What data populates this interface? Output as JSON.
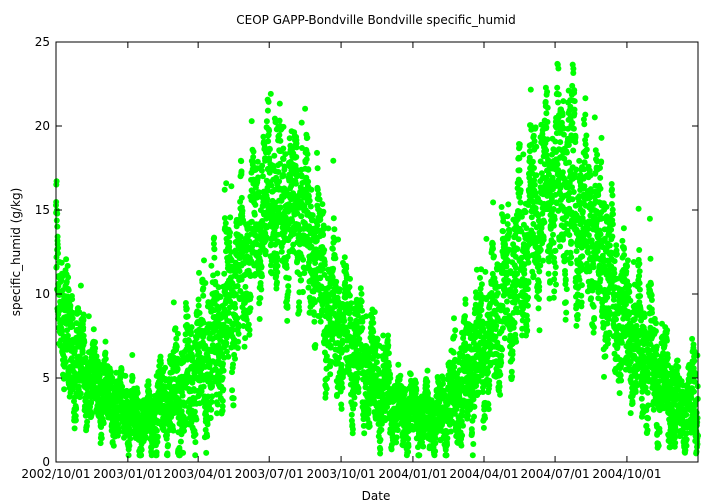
{
  "chart_data": {
    "type": "scatter",
    "title": "CEOP GAPP-Bondville Bondville  specific_humid",
    "xlabel": "Date",
    "ylabel": "specific_humid (g/kg)",
    "x_range": [
      "2002-10-01",
      "2004-12-31"
    ],
    "ylim": [
      0,
      25
    ],
    "grid": false,
    "legend": "none",
    "x_ticks": [
      {
        "date": "2002-10-01",
        "label": "2002/10/01"
      },
      {
        "date": "2003-01-01",
        "label": "2003/01/01"
      },
      {
        "date": "2003-04-01",
        "label": "2003/04/01"
      },
      {
        "date": "2003-07-01",
        "label": "2003/07/01"
      },
      {
        "date": "2003-10-01",
        "label": "2003/10/01"
      },
      {
        "date": "2004-01-01",
        "label": "2004/01/01"
      },
      {
        "date": "2004-04-01",
        "label": "2004/04/01"
      },
      {
        "date": "2004-07-01",
        "label": "2004/07/01"
      },
      {
        "date": "2004-10-01",
        "label": "2004/10/01"
      }
    ],
    "y_ticks": [
      0,
      5,
      10,
      15,
      20,
      25
    ],
    "point_color": "#00ff00",
    "series": [
      {
        "x": [
          "2002-10-01",
          "2002-10-15",
          "2002-11-01",
          "2002-11-15",
          "2002-12-01",
          "2002-12-15",
          "2003-01-01",
          "2003-01-15",
          "2003-02-01",
          "2003-02-15",
          "2003-03-01",
          "2003-03-15",
          "2003-04-01",
          "2003-04-15",
          "2003-05-01",
          "2003-05-15",
          "2003-06-01",
          "2003-06-15",
          "2003-07-01",
          "2003-07-15",
          "2003-08-01",
          "2003-08-15",
          "2003-09-01",
          "2003-09-15",
          "2003-10-01",
          "2003-10-15",
          "2003-11-01",
          "2003-11-15",
          "2003-12-01",
          "2003-12-15",
          "2004-01-01",
          "2004-01-15",
          "2004-02-01",
          "2004-02-15",
          "2004-03-01",
          "2004-03-15",
          "2004-04-01",
          "2004-04-15",
          "2004-05-01",
          "2004-05-15",
          "2004-06-01",
          "2004-06-15",
          "2004-07-01",
          "2004-07-15",
          "2004-08-01",
          "2004-08-15",
          "2004-09-01",
          "2004-09-15",
          "2004-10-01",
          "2004-10-15",
          "2004-11-01",
          "2004-11-15",
          "2004-12-01",
          "2004-12-15",
          "2004-12-31"
        ],
        "y": [
          12.5,
          7.0,
          6.0,
          5.0,
          4.0,
          3.5,
          3.0,
          2.5,
          2.5,
          3.5,
          4.0,
          4.5,
          5.5,
          6.5,
          8.0,
          10.0,
          12.0,
          14.0,
          16.0,
          15.0,
          15.0,
          14.0,
          12.0,
          9.0,
          8.0,
          7.0,
          5.5,
          5.0,
          4.0,
          3.0,
          3.0,
          2.5,
          2.5,
          3.5,
          4.5,
          5.5,
          7.0,
          8.0,
          10.0,
          12.0,
          14.0,
          16.0,
          16.0,
          17.0,
          15.0,
          14.0,
          12.0,
          10.0,
          8.0,
          7.0,
          6.0,
          5.0,
          3.5,
          3.0,
          4.0
        ],
        "spread": [
          3.0,
          3.0,
          2.5,
          2.0,
          1.8,
          1.5,
          1.5,
          1.5,
          1.5,
          2.0,
          2.5,
          3.0,
          3.0,
          3.5,
          3.5,
          4.0,
          3.5,
          3.5,
          3.5,
          4.0,
          3.5,
          3.5,
          3.5,
          3.5,
          3.0,
          3.0,
          2.5,
          2.5,
          2.0,
          1.8,
          1.5,
          1.5,
          1.5,
          2.0,
          2.5,
          3.0,
          3.0,
          3.5,
          3.5,
          4.0,
          4.0,
          4.0,
          4.5,
          5.0,
          4.5,
          4.0,
          4.0,
          3.5,
          3.0,
          3.0,
          3.0,
          2.5,
          2.0,
          1.5,
          2.5
        ]
      }
    ]
  }
}
